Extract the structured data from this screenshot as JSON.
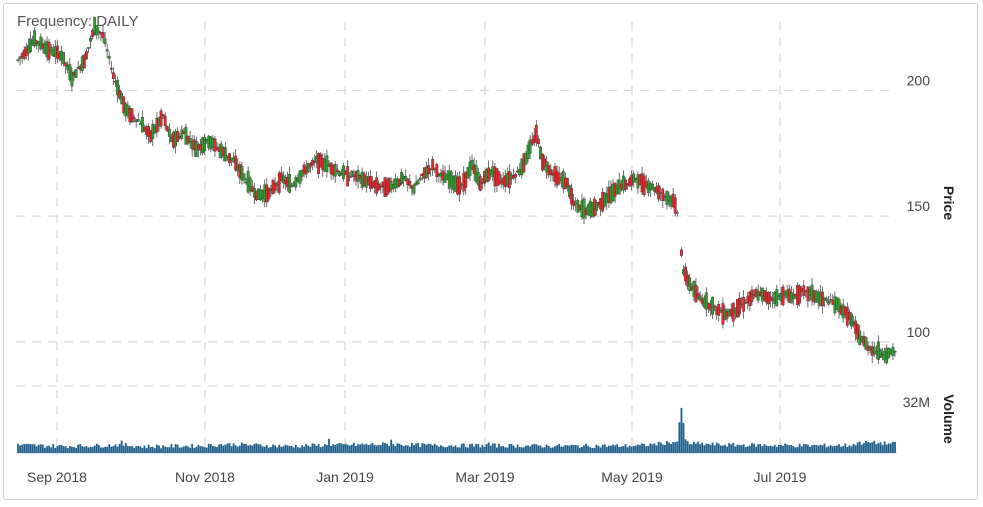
{
  "header": {
    "frequency_label": "Frequency: DAILY"
  },
  "chart_data": {
    "type": "candlestick",
    "up_color": "#2ca02c",
    "down_color": "#e8262b",
    "volume_color": "#1f5f8b",
    "x_labels": [
      "Sep 2018",
      "Nov 2018",
      "Jan 2019",
      "Mar 2019",
      "May 2019",
      "Jul 2019"
    ],
    "price_axis": {
      "title": "Price",
      "ticks": [
        100,
        150,
        200
      ],
      "range": [
        88,
        228
      ]
    },
    "volume_axis": {
      "title": "Volume",
      "ticks": [
        "32M"
      ],
      "max_value": 32
    },
    "grid": true,
    "price_path": [
      [
        0,
        212
      ],
      [
        8,
        220
      ],
      [
        15,
        216
      ],
      [
        21,
        214
      ],
      [
        26,
        205
      ],
      [
        32,
        212
      ],
      [
        37,
        225
      ],
      [
        41,
        222
      ],
      [
        46,
        206
      ],
      [
        52,
        192
      ],
      [
        58,
        188
      ],
      [
        64,
        182
      ],
      [
        70,
        190
      ],
      [
        74,
        180
      ],
      [
        80,
        183
      ],
      [
        86,
        177
      ],
      [
        92,
        180
      ],
      [
        98,
        176
      ],
      [
        104,
        172
      ],
      [
        110,
        164
      ],
      [
        116,
        158
      ],
      [
        122,
        160
      ],
      [
        127,
        165
      ],
      [
        132,
        162
      ],
      [
        138,
        168
      ],
      [
        144,
        172
      ],
      [
        150,
        170
      ],
      [
        156,
        167
      ],
      [
        162,
        166
      ],
      [
        168,
        164
      ],
      [
        174,
        162
      ],
      [
        180,
        162
      ],
      [
        186,
        165
      ],
      [
        191,
        161
      ],
      [
        196,
        167
      ],
      [
        200,
        170
      ],
      [
        204,
        166
      ],
      [
        209,
        164
      ],
      [
        214,
        162
      ],
      [
        219,
        170
      ],
      [
        223,
        163
      ],
      [
        228,
        168
      ],
      [
        233,
        164
      ],
      [
        237,
        165
      ],
      [
        242,
        168
      ],
      [
        246,
        175
      ],
      [
        250,
        183
      ],
      [
        253,
        172
      ],
      [
        257,
        168
      ],
      [
        261,
        165
      ],
      [
        265,
        163
      ],
      [
        268,
        155
      ],
      [
        271,
        153
      ],
      [
        275,
        152
      ],
      [
        279,
        154
      ],
      [
        283,
        157
      ],
      [
        287,
        159
      ],
      [
        290,
        162
      ],
      [
        294,
        163
      ],
      [
        298,
        165
      ],
      [
        302,
        163
      ],
      [
        305,
        162
      ],
      [
        309,
        160
      ],
      [
        312,
        158
      ],
      [
        316,
        156
      ],
      [
        318,
        152
      ],
      [
        321,
        128
      ],
      [
        324,
        123
      ],
      [
        328,
        118
      ],
      [
        333,
        115
      ],
      [
        337,
        113
      ],
      [
        342,
        111
      ],
      [
        346,
        113
      ],
      [
        351,
        116
      ],
      [
        356,
        119
      ],
      [
        361,
        118
      ],
      [
        365,
        117
      ],
      [
        369,
        119
      ],
      [
        374,
        118
      ],
      [
        378,
        120
      ],
      [
        383,
        119
      ],
      [
        387,
        117
      ],
      [
        392,
        116
      ],
      [
        396,
        114
      ],
      [
        401,
        110
      ],
      [
        406,
        102
      ],
      [
        410,
        98
      ],
      [
        414,
        96
      ],
      [
        419,
        95
      ],
      [
        423,
        96
      ]
    ],
    "volume_path": [
      [
        0,
        4.2
      ],
      [
        20,
        3.6
      ],
      [
        40,
        3.9
      ],
      [
        50,
        4.4
      ],
      [
        60,
        3.4
      ],
      [
        90,
        3.8
      ],
      [
        100,
        4.6
      ],
      [
        130,
        3.6
      ],
      [
        150,
        4.1
      ],
      [
        180,
        4.6
      ],
      [
        200,
        4.0
      ],
      [
        230,
        3.9
      ],
      [
        260,
        3.7
      ],
      [
        300,
        3.8
      ],
      [
        318,
        6.0
      ],
      [
        320,
        24.0
      ],
      [
        321,
        15.0
      ],
      [
        322,
        6.5
      ],
      [
        324,
        5.0
      ],
      [
        340,
        4.3
      ],
      [
        380,
        3.9
      ],
      [
        400,
        4.0
      ],
      [
        410,
        5.5
      ],
      [
        423,
        4.8
      ]
    ],
    "volume_spikes": [
      [
        50,
        6.5
      ],
      [
        150,
        7.5
      ],
      [
        180,
        7.0
      ],
      [
        227,
        5.5
      ],
      [
        406,
        6.0
      ]
    ]
  }
}
